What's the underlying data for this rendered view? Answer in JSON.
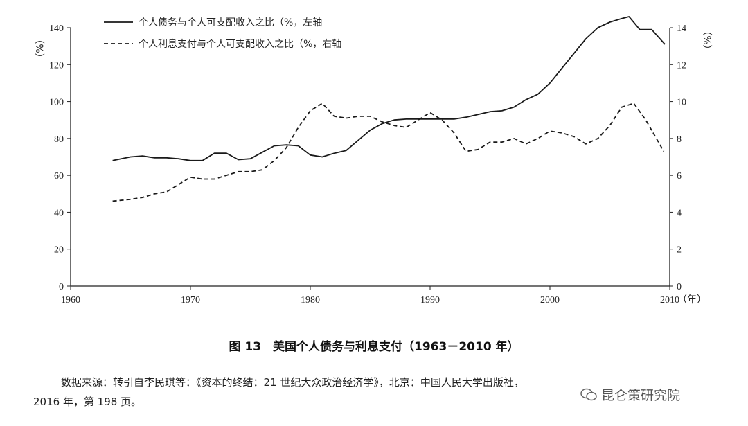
{
  "chart_data": {
    "type": "line",
    "title": "图 13　美国个人债务与利息支付（1963－2010 年）",
    "x_unit": "（年）",
    "y_left_unit": "（%）",
    "y_right_unit": "（%）",
    "xlim": [
      1960,
      2010
    ],
    "ylim_left": [
      0,
      140
    ],
    "ylim_right": [
      0,
      14
    ],
    "x_ticks": [
      "1960",
      "1970",
      "1980",
      "1990",
      "2000",
      "2010"
    ],
    "y_left_ticks": [
      "0",
      "20",
      "40",
      "60",
      "80",
      "100",
      "120",
      "140"
    ],
    "y_right_ticks": [
      "0",
      "2",
      "4",
      "6",
      "8",
      "10",
      "12",
      "14"
    ],
    "legend_position": "top-left",
    "series": [
      {
        "name": "个人债务与个人可支配收入之比（%，左轴",
        "axis": "left",
        "style": "solid",
        "x": [
          1963.5,
          1965,
          1966,
          1967,
          1968,
          1969,
          1970,
          1971,
          1972,
          1973,
          1974,
          1975,
          1976,
          1977,
          1978,
          1979,
          1980,
          1981,
          1982,
          1983,
          1984,
          1985,
          1986,
          1987,
          1988,
          1989,
          1990,
          1991,
          1992,
          1993,
          1994,
          1995,
          1996,
          1997,
          1998,
          1999,
          2000,
          2001,
          2002,
          2003,
          2004,
          2005,
          2006,
          2006.6,
          2007.5,
          2008.5,
          2009.6
        ],
        "values": [
          68,
          70,
          70.5,
          69.5,
          69.5,
          69,
          68,
          68,
          72,
          72,
          68.5,
          69,
          72.5,
          76,
          76.5,
          76,
          71,
          70,
          72,
          73.5,
          79,
          84.5,
          88,
          90,
          90.5,
          90.5,
          90.5,
          90.5,
          90.5,
          91.5,
          93,
          94.5,
          95,
          97,
          101,
          104,
          110,
          118,
          126,
          134,
          140,
          143,
          145,
          146,
          139,
          139,
          131
        ]
      },
      {
        "name": "个人利息支付与个人可支配收入之比（%，右轴",
        "axis": "right",
        "style": "dashed",
        "x": [
          1963.5,
          1965,
          1966,
          1967,
          1968,
          1969,
          1970,
          1971,
          1972,
          1973,
          1974,
          1975,
          1976,
          1977,
          1978,
          1979,
          1980,
          1981,
          1982,
          1983,
          1984,
          1985,
          1986,
          1987,
          1988,
          1989,
          1990,
          1991,
          1992,
          1993,
          1994,
          1995,
          1996,
          1997,
          1998,
          1999,
          2000,
          2001,
          2002,
          2003,
          2004,
          2005,
          2006,
          2007,
          2008,
          2009.5
        ],
        "values": [
          4.6,
          4.7,
          4.8,
          5.0,
          5.1,
          5.5,
          5.9,
          5.8,
          5.8,
          6.0,
          6.2,
          6.2,
          6.3,
          6.8,
          7.5,
          8.6,
          9.5,
          9.9,
          9.2,
          9.1,
          9.2,
          9.2,
          8.9,
          8.7,
          8.6,
          9.0,
          9.4,
          9.0,
          8.3,
          7.3,
          7.4,
          7.8,
          7.8,
          8.0,
          7.7,
          8.0,
          8.4,
          8.3,
          8.1,
          7.7,
          8.0,
          8.7,
          9.7,
          9.9,
          9.0,
          7.3
        ]
      }
    ]
  },
  "footer": {
    "caption": "图 13　美国个人债务与利息支付（1963－2010 年）",
    "source_line1": "数据来源：转引自李民琪等：《资本的终结：21 世纪大众政治经济学》，北京：中国人民大学出版社，",
    "source_line2": "2016 年，第 198 页。",
    "watermark": "昆仑策研究院"
  }
}
